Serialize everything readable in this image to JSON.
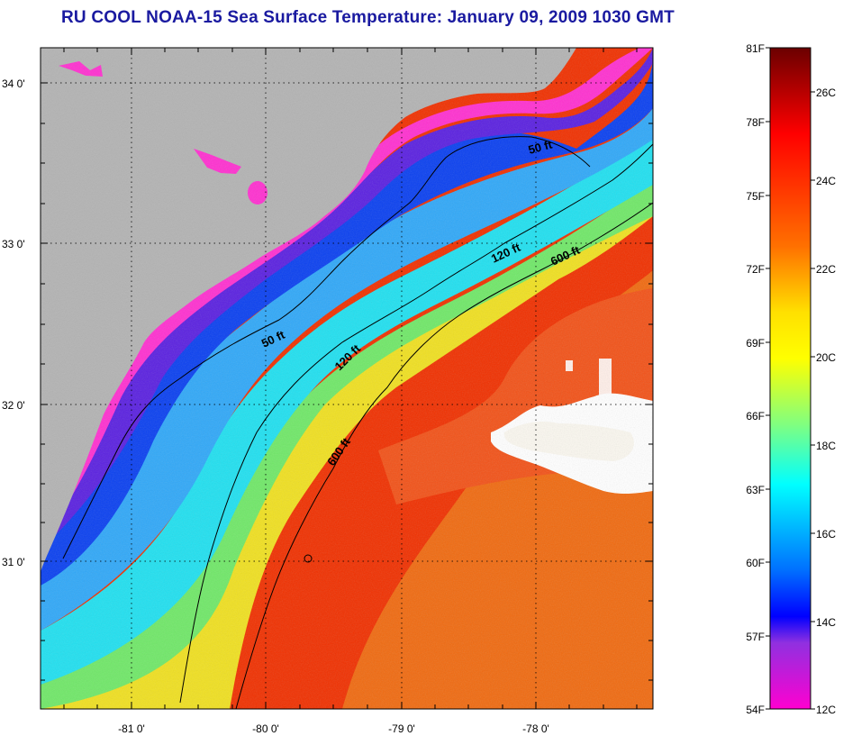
{
  "title": "RU COOL  NOAA-15  Sea Surface Temperature:  January 09, 2009 1030 GMT",
  "map": {
    "lat_labels": [
      "34 0'",
      "33 0'",
      "32 0'",
      "31 0'"
    ],
    "lon_labels": [
      "-81 0'",
      "-80 0'",
      "-79 0'",
      "-78 0'"
    ],
    "contour_labels": [
      "50 ft",
      "50 ft",
      "120 ft",
      "120 ft",
      "600 ft",
      "600 ft"
    ],
    "colors": {
      "land": "#b3b3b3",
      "cloud": "#ffffff",
      "contour": "#000000"
    }
  },
  "colorbar": {
    "fahrenheit_labels": [
      "81F",
      "78F",
      "75F",
      "72F",
      "69F",
      "66F",
      "63F",
      "60F",
      "57F",
      "54F"
    ],
    "celsius_labels": [
      "26C",
      "24C",
      "22C",
      "20C",
      "18C",
      "16C",
      "14C",
      "12C"
    ],
    "gradient_stops": [
      "#6b0000",
      "#ff0000",
      "#ff7f00",
      "#ffff00",
      "#7fff7f",
      "#00ffff",
      "#007fff",
      "#0000ff",
      "#ff00ff"
    ]
  }
}
